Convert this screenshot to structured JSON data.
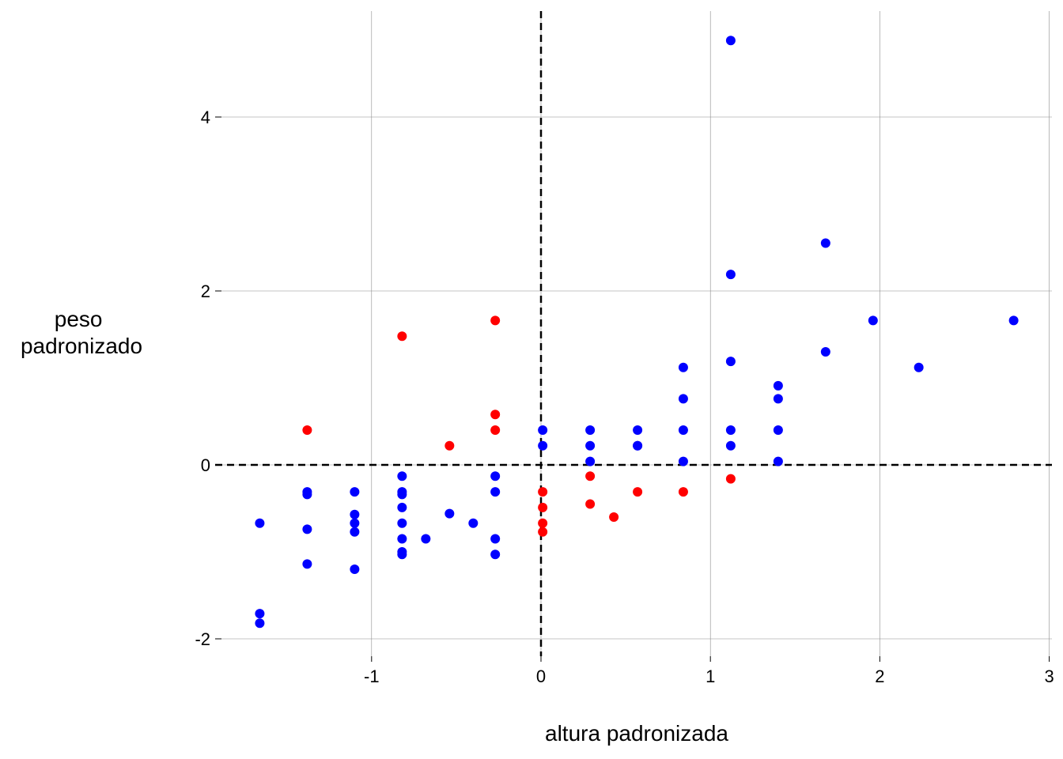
{
  "chart_data": {
    "type": "scatter",
    "xlabel": "altura padronizada",
    "ylabel": [
      "peso",
      "padronizado"
    ],
    "xlim": [
      -1.95,
      3.0
    ],
    "ylim": [
      -2.1,
      5.2
    ],
    "xticks": [
      -1,
      0,
      1,
      2,
      3
    ],
    "yticks": [
      -2,
      0,
      2,
      4
    ],
    "xtick_labels": [
      "-1",
      "0",
      "1",
      "2",
      "3"
    ],
    "ytick_labels": [
      "-2",
      "0",
      "2",
      "4"
    ],
    "grid": true,
    "reference_lines": {
      "x": 0,
      "y": 0
    },
    "colors": {
      "blue": "#0000ff",
      "red": "#ff0000"
    },
    "series": [
      {
        "color": "#0000ff",
        "points": [
          [
            -1.66,
            -0.67
          ],
          [
            -1.66,
            -1.71
          ],
          [
            -1.66,
            -1.82
          ],
          [
            -1.38,
            -0.31
          ],
          [
            -1.38,
            -0.34
          ],
          [
            -1.38,
            -0.74
          ],
          [
            -1.38,
            -1.14
          ],
          [
            -1.1,
            -0.31
          ],
          [
            -1.1,
            -0.57
          ],
          [
            -1.1,
            -0.67
          ],
          [
            -1.1,
            -0.77
          ],
          [
            -1.1,
            -1.2
          ],
          [
            -0.82,
            -0.13
          ],
          [
            -0.82,
            -0.31
          ],
          [
            -0.82,
            -0.34
          ],
          [
            -0.82,
            -0.49
          ],
          [
            -0.82,
            -0.67
          ],
          [
            -0.82,
            -0.85
          ],
          [
            -0.82,
            -1.0
          ],
          [
            -0.82,
            -1.03
          ],
          [
            -0.68,
            -0.85
          ],
          [
            -0.54,
            -0.56
          ],
          [
            -0.4,
            -0.67
          ],
          [
            -0.27,
            -0.13
          ],
          [
            -0.27,
            -0.31
          ],
          [
            -0.27,
            -0.85
          ],
          [
            -0.27,
            -1.03
          ],
          [
            0.01,
            0.4
          ],
          [
            0.01,
            0.22
          ],
          [
            0.29,
            0.4
          ],
          [
            0.29,
            0.22
          ],
          [
            0.29,
            0.04
          ],
          [
            0.57,
            0.4
          ],
          [
            0.57,
            0.22
          ],
          [
            0.57,
            0.22
          ],
          [
            0.84,
            1.12
          ],
          [
            0.84,
            0.76
          ],
          [
            0.84,
            0.4
          ],
          [
            0.84,
            0.04
          ],
          [
            1.12,
            4.88
          ],
          [
            1.12,
            2.19
          ],
          [
            1.12,
            1.19
          ],
          [
            1.12,
            0.4
          ],
          [
            1.12,
            0.22
          ],
          [
            1.4,
            0.91
          ],
          [
            1.4,
            0.76
          ],
          [
            1.4,
            0.4
          ],
          [
            1.4,
            0.04
          ],
          [
            1.68,
            2.55
          ],
          [
            1.68,
            1.3
          ],
          [
            1.96,
            1.66
          ],
          [
            2.23,
            1.12
          ],
          [
            2.79,
            1.66
          ]
        ]
      },
      {
        "color": "#ff0000",
        "points": [
          [
            -1.38,
            0.4
          ],
          [
            -0.82,
            1.48
          ],
          [
            -0.54,
            0.22
          ],
          [
            -0.27,
            1.66
          ],
          [
            -0.27,
            0.58
          ],
          [
            -0.27,
            0.4
          ],
          [
            0.01,
            -0.31
          ],
          [
            0.01,
            -0.49
          ],
          [
            0.01,
            -0.67
          ],
          [
            0.01,
            -0.77
          ],
          [
            0.29,
            -0.13
          ],
          [
            0.29,
            -0.45
          ],
          [
            0.43,
            -0.6
          ],
          [
            0.57,
            -0.31
          ],
          [
            0.84,
            -0.31
          ],
          [
            1.12,
            -0.16
          ]
        ]
      }
    ]
  }
}
